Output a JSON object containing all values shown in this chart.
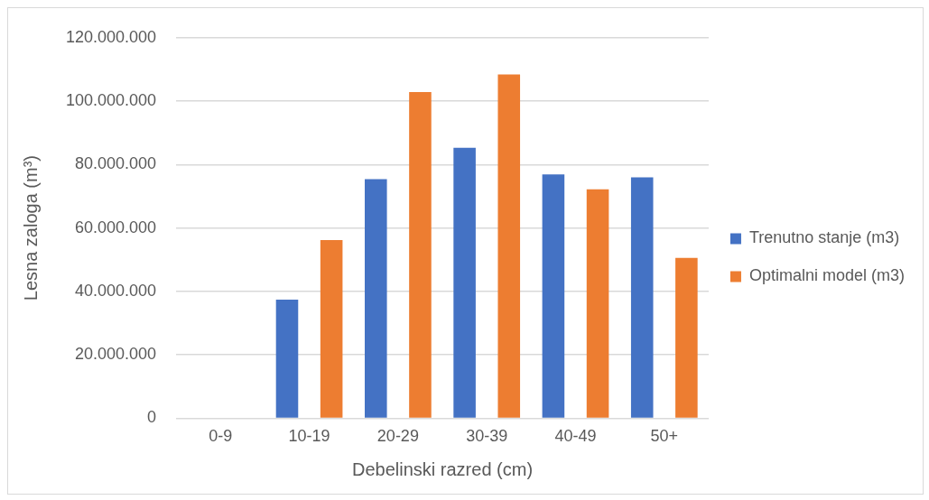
{
  "chart_data": {
    "type": "bar",
    "xlabel": "Debelinski razred (cm)",
    "ylabel": "Lesna zaloga (m³)",
    "categories": [
      "0-9",
      "10-19",
      "20-29",
      "30-39",
      "40-49",
      "50+"
    ],
    "series": [
      {
        "name": "Trenutno stanje (m3)",
        "color": "#4472c4",
        "values": [
          0,
          37400000,
          75400000,
          85300000,
          76900000,
          76000000
        ]
      },
      {
        "name": "Optimalni model (m3)",
        "color": "#ed7d31",
        "values": [
          0,
          56200000,
          102900000,
          108400000,
          72200000,
          50600000
        ]
      }
    ],
    "ylim": [
      0,
      120000000
    ],
    "yticks": [
      {
        "value": 0,
        "label": "0"
      },
      {
        "value": 20000000,
        "label": "20.000.000"
      },
      {
        "value": 40000000,
        "label": "40.000.000"
      },
      {
        "value": 60000000,
        "label": "60.000.000"
      },
      {
        "value": 80000000,
        "label": "80.000.000"
      },
      {
        "value": 100000000,
        "label": "100.000.000"
      },
      {
        "value": 120000000,
        "label": "120.000.000"
      }
    ],
    "grid": "y",
    "legend": "right"
  }
}
